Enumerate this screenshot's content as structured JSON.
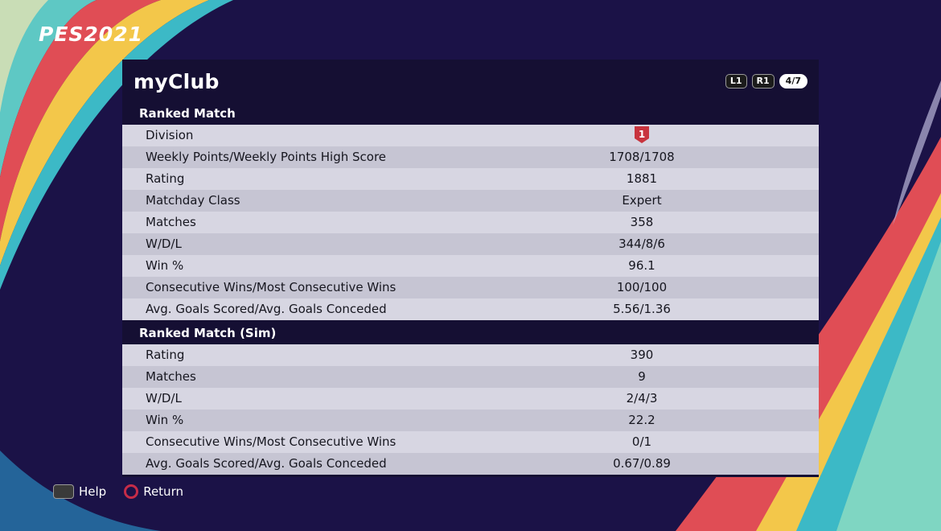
{
  "app": {
    "logo": "PES2021"
  },
  "panel": {
    "title": "myClub",
    "buttons": {
      "l1": "L1",
      "r1": "R1",
      "page": "4/7"
    }
  },
  "sections": {
    "ranked": {
      "title": "Ranked Match",
      "rows": [
        {
          "label": "Division",
          "value": "1"
        },
        {
          "label": "Weekly Points/Weekly Points High Score",
          "value": "1708/1708"
        },
        {
          "label": "Rating",
          "value": "1881"
        },
        {
          "label": "Matchday Class",
          "value": "Expert"
        },
        {
          "label": "Matches",
          "value": "358"
        },
        {
          "label": "W/D/L",
          "value": "344/8/6"
        },
        {
          "label": "Win %",
          "value": "96.1"
        },
        {
          "label": "Consecutive Wins/Most Consecutive Wins",
          "value": "100/100"
        },
        {
          "label": "Avg. Goals Scored/Avg. Goals Conceded",
          "value": "5.56/1.36"
        }
      ]
    },
    "sim": {
      "title": "Ranked Match (Sim)",
      "rows": [
        {
          "label": "Rating",
          "value": "390"
        },
        {
          "label": "Matches",
          "value": "9"
        },
        {
          "label": "W/D/L",
          "value": "2/4/3"
        },
        {
          "label": "Win %",
          "value": "22.2"
        },
        {
          "label": "Consecutive Wins/Most Consecutive Wins",
          "value": "0/1"
        },
        {
          "label": "Avg. Goals Scored/Avg. Goals Conceded",
          "value": "0.67/0.89"
        }
      ]
    }
  },
  "footer": {
    "help_label": "Help",
    "return_label": "Return"
  },
  "colors": {
    "background": "#1b1247",
    "panel": "#150f33",
    "row_light": "#d7d6e2",
    "row_dark": "#c6c5d3",
    "division_badge": "#c8343e",
    "return_circle": "#c62c48"
  }
}
